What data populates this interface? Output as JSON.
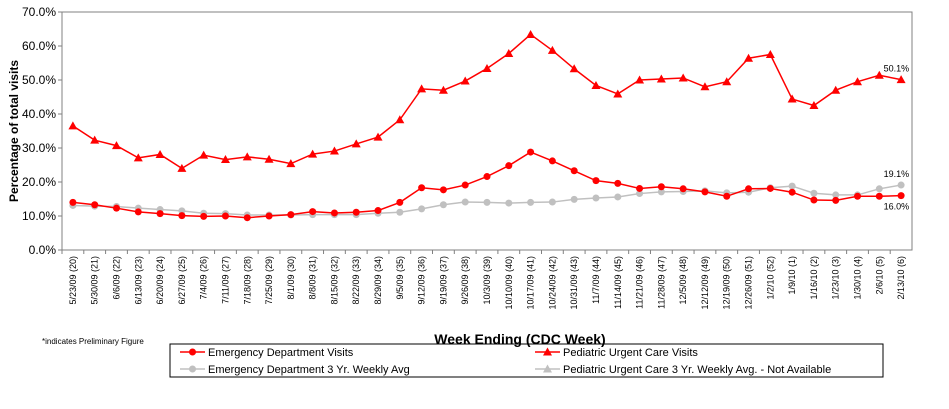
{
  "chart_data": {
    "type": "line",
    "y_label": "Percentage of total visits",
    "x_label": "Week Ending (CDC Week)",
    "footnote": "*indicates Preliminary Figure",
    "categories": [
      "5/23/09 (20)",
      "5/30/09 (21)",
      "6/6/09 (22)",
      "6/13/09 (23)",
      "6/20/09 (24)",
      "6/27/09 (25)",
      "7/4/09 (26)",
      "7/11/09 (27)",
      "7/18/09 (28)",
      "7/25/09 (29)",
      "8/1/09 (30)",
      "8/8/09 (31)",
      "8/15/09 (32)",
      "8/22/09 (33)",
      "8/29/09 (34)",
      "9/5/09 (35)",
      "9/12/09 (36)",
      "9/19/09 (37)",
      "9/26/09 (38)",
      "10/3/09 (39)",
      "10/10/09 (40)",
      "10/17/09 (41)",
      "10/24/09 (42)",
      "10/31/09 (43)",
      "11/7/09 (44)",
      "11/14/09 (45)",
      "11/21/09 (46)",
      "11/28/09 (47)",
      "12/5/09 (48)",
      "12/12/09 (49)",
      "12/19/09 (50)",
      "12/26/09 (51)",
      "1/2/10 (52)",
      "1/9/10 (1)",
      "1/16/10 (2)",
      "1/23/10 (3)",
      "1/30/10 (4)",
      "2/6/10 (5)",
      "2/13/10 (6)"
    ],
    "ylim": [
      0,
      70
    ],
    "yticks": [
      {
        "value": 0,
        "label": "0.0%"
      },
      {
        "value": 10,
        "label": "10.0%"
      },
      {
        "value": 20,
        "label": "20.0%"
      },
      {
        "value": 30,
        "label": "30.0%"
      },
      {
        "value": 40,
        "label": "40.0%"
      },
      {
        "value": 50,
        "label": "50.0%"
      },
      {
        "value": 60,
        "label": "60.0%"
      },
      {
        "value": 70,
        "label": "70.0%"
      }
    ],
    "grid": false,
    "series": [
      {
        "name": "Emergency Department Visits",
        "color": "#ff0000",
        "marker": "circle",
        "values": [
          14.0,
          13.3,
          12.3,
          11.2,
          10.7,
          10.1,
          9.9,
          10.0,
          9.5,
          10.0,
          10.4,
          11.3,
          10.9,
          11.1,
          11.6,
          14.0,
          18.3,
          17.7,
          19.1,
          21.6,
          24.8,
          28.8,
          26.2,
          23.3,
          20.4,
          19.6,
          18.1,
          18.6,
          18.0,
          17.1,
          15.8,
          18.0,
          18.1,
          17.0,
          14.7,
          14.6,
          15.8,
          15.8,
          16.0
        ],
        "value_labels": [
          null,
          null,
          null,
          null,
          null,
          null,
          null,
          null,
          null,
          null,
          null,
          null,
          null,
          null,
          null,
          null,
          null,
          null,
          null,
          null,
          null,
          null,
          null,
          null,
          null,
          null,
          null,
          null,
          null,
          null,
          null,
          null,
          null,
          null,
          null,
          null,
          null,
          null,
          "16.0%"
        ]
      },
      {
        "name": "Pediatric Urgent Care Visits",
        "color": "#ff0000",
        "marker": "triangle",
        "values": [
          36.5,
          32.3,
          30.7,
          27.1,
          28.1,
          24.0,
          27.9,
          26.6,
          27.4,
          26.7,
          25.4,
          28.2,
          29.1,
          31.2,
          33.2,
          38.3,
          47.4,
          47.0,
          49.7,
          53.4,
          57.8,
          63.4,
          58.7,
          53.3,
          48.4,
          45.9,
          50.0,
          50.3,
          50.6,
          48.0,
          49.5,
          56.4,
          57.5,
          44.4,
          42.5,
          47.0,
          49.5,
          51.4,
          50.1
        ],
        "value_labels": [
          null,
          null,
          null,
          null,
          null,
          null,
          null,
          null,
          null,
          null,
          null,
          null,
          null,
          null,
          null,
          null,
          null,
          null,
          null,
          null,
          null,
          null,
          null,
          null,
          null,
          null,
          null,
          null,
          null,
          null,
          null,
          null,
          null,
          null,
          null,
          null,
          null,
          null,
          "50.1%"
        ]
      },
      {
        "name": "Emergency Department 3 Yr. Weekly Avg",
        "color": "#c0c0c0",
        "marker": "circle",
        "values": [
          13.1,
          12.9,
          12.8,
          12.3,
          11.9,
          11.5,
          10.8,
          10.7,
          10.3,
          10.3,
          10.3,
          10.4,
          10.4,
          10.4,
          10.8,
          11.1,
          12.1,
          13.3,
          14.1,
          14.0,
          13.8,
          14.0,
          14.1,
          14.9,
          15.3,
          15.6,
          16.6,
          17.1,
          17.2,
          17.4,
          16.8,
          17.0,
          18.3,
          18.8,
          16.7,
          16.2,
          16.2,
          18.0,
          19.1
        ],
        "value_labels": [
          null,
          null,
          null,
          null,
          null,
          null,
          null,
          null,
          null,
          null,
          null,
          null,
          null,
          null,
          null,
          null,
          null,
          null,
          null,
          null,
          null,
          null,
          null,
          null,
          null,
          null,
          null,
          null,
          null,
          null,
          null,
          null,
          null,
          null,
          null,
          null,
          null,
          null,
          "19.1%"
        ]
      },
      {
        "name": "Pediatric Urgent Care 3 Yr. Weekly Avg. -  Not Available",
        "color": "#c0c0c0",
        "marker": "triangle",
        "values": [
          null,
          null,
          null,
          null,
          null,
          null,
          null,
          null,
          null,
          null,
          null,
          null,
          null,
          null,
          null,
          null,
          null,
          null,
          null,
          null,
          null,
          null,
          null,
          null,
          null,
          null,
          null,
          null,
          null,
          null,
          null,
          null,
          null,
          null,
          null,
          null,
          null,
          null,
          null
        ]
      }
    ]
  }
}
